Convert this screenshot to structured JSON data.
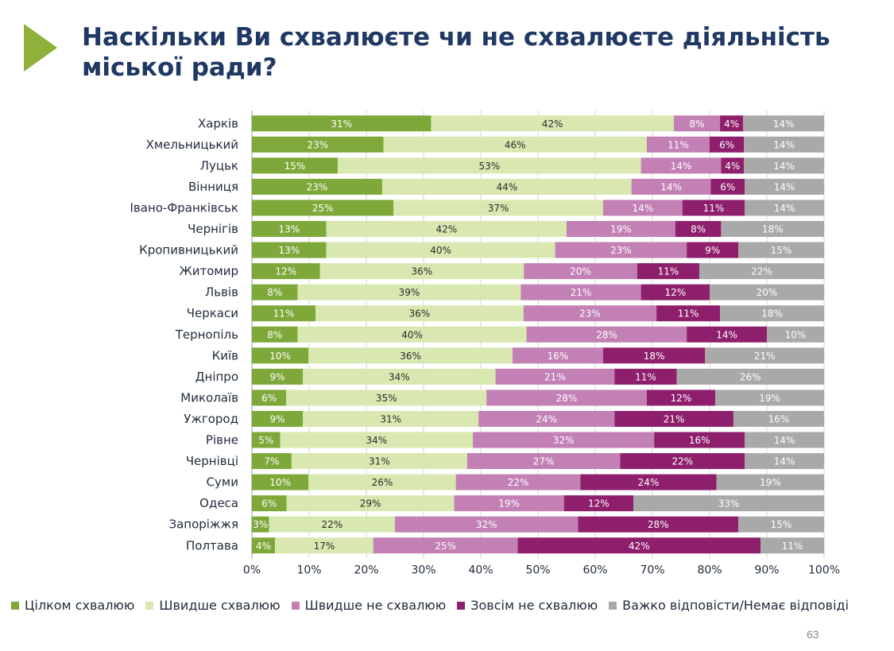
{
  "slide": {
    "title": "Наскільки Ви схвалюєте чи не схвалюєте діяльність міської ради?",
    "page_number": "63"
  },
  "colors": {
    "accent": "#8fb13a",
    "title": "#1f3864",
    "series": [
      "#7fa83a",
      "#d9e8b0",
      "#c280b4",
      "#8e1f6c",
      "#a9a9a9"
    ]
  },
  "legend": [
    {
      "label": "Цілком схвалюю"
    },
    {
      "label": "Швидше схвалюю"
    },
    {
      "label": "Швидше не схвалюю"
    },
    {
      "label": "Зовсім не схвалюю"
    },
    {
      "label": "Важко відповісти/Немає відповіді"
    }
  ],
  "chart_data": {
    "type": "bar",
    "orientation": "horizontal",
    "stacked": true,
    "title": "Наскільки Ви схвалюєте чи не схвалюєте діяльність міської ради?",
    "xlim": [
      0,
      100
    ],
    "x_ticks": [
      "0%",
      "10%",
      "20%",
      "30%",
      "40%",
      "50%",
      "60%",
      "70%",
      "80%",
      "90%",
      "100%"
    ],
    "grid": true,
    "legend_position": "bottom",
    "categories": [
      "Харків",
      "Хмельницький",
      "Луцьк",
      "Вінниця",
      "Івано-Франківськ",
      "Чернігів",
      "Кропивницький",
      "Житомир",
      "Львів",
      "Черкаси",
      "Тернопіль",
      "Київ",
      "Дніпро",
      "Миколаїв",
      "Ужгород",
      "Рівне",
      "Чернівці",
      "Суми",
      "Одеса",
      "Запоріжжя",
      "Полтава"
    ],
    "series": [
      {
        "name": "Цілком схвалюю",
        "values": [
          31,
          23,
          15,
          23,
          25,
          13,
          13,
          12,
          8,
          11,
          8,
          10,
          9,
          6,
          9,
          5,
          7,
          10,
          6,
          3,
          4
        ]
      },
      {
        "name": "Швидше схвалюю",
        "values": [
          42,
          46,
          53,
          44,
          37,
          42,
          40,
          36,
          39,
          36,
          40,
          36,
          34,
          35,
          31,
          34,
          31,
          26,
          29,
          22,
          17
        ]
      },
      {
        "name": "Швидше не схвалюю",
        "values": [
          8,
          11,
          14,
          14,
          14,
          19,
          23,
          20,
          21,
          23,
          28,
          16,
          21,
          28,
          24,
          32,
          27,
          22,
          19,
          32,
          25
        ]
      },
      {
        "name": "Зовсім не схвалюю",
        "values": [
          4,
          6,
          4,
          6,
          11,
          8,
          9,
          11,
          12,
          11,
          14,
          18,
          11,
          12,
          21,
          16,
          22,
          24,
          12,
          28,
          42
        ]
      },
      {
        "name": "Важко відповісти/Немає відповіді",
        "values": [
          14,
          14,
          14,
          14,
          14,
          18,
          15,
          22,
          20,
          18,
          10,
          21,
          26,
          19,
          16,
          14,
          14,
          19,
          33,
          15,
          11
        ]
      }
    ]
  }
}
